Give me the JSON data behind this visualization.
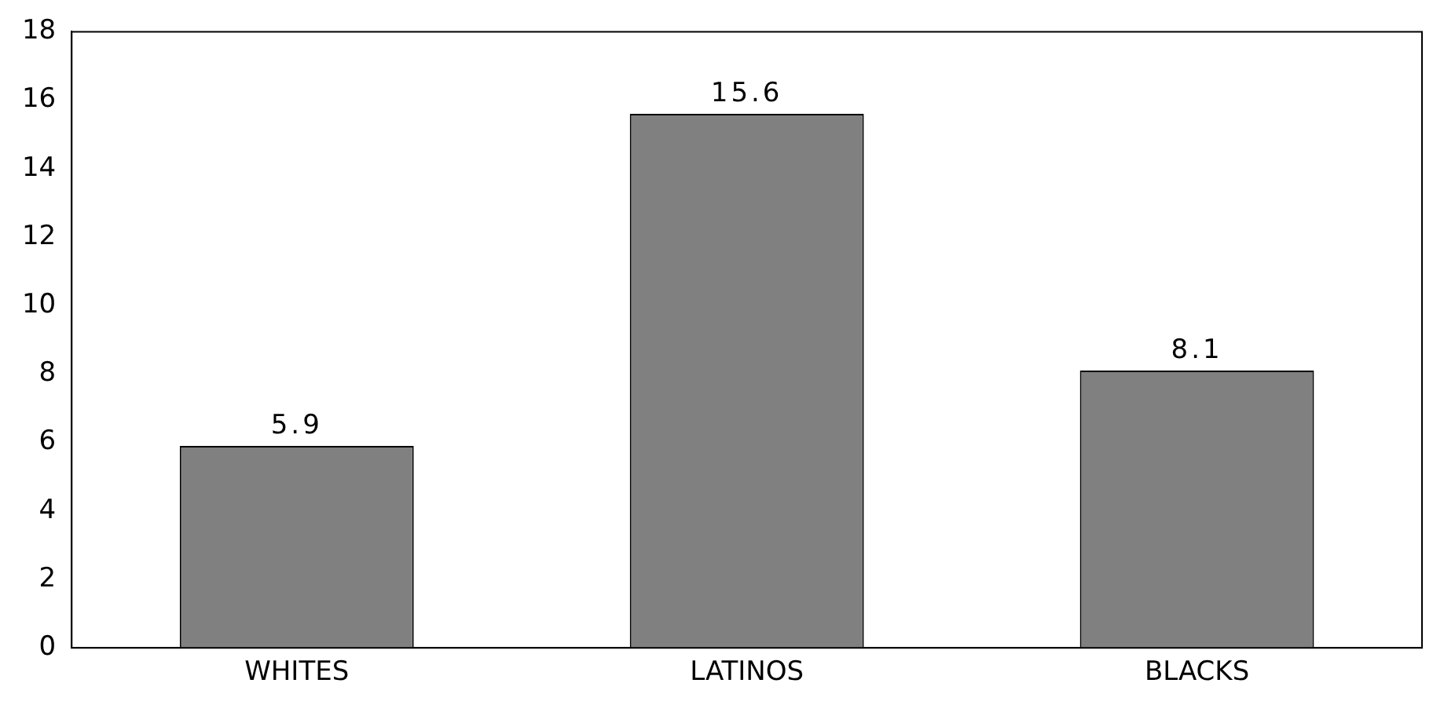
{
  "chart_data": {
    "type": "bar",
    "categories": [
      "WHITES",
      "LATINOS",
      "BLACKS"
    ],
    "values": [
      5.9,
      15.6,
      8.1
    ],
    "color": "#808080",
    "ylim": [
      0,
      18
    ],
    "yticks": [
      0,
      2,
      4,
      6,
      8,
      10,
      12,
      14,
      16,
      18
    ],
    "grid": false,
    "legend": false,
    "data_labels": true
  }
}
